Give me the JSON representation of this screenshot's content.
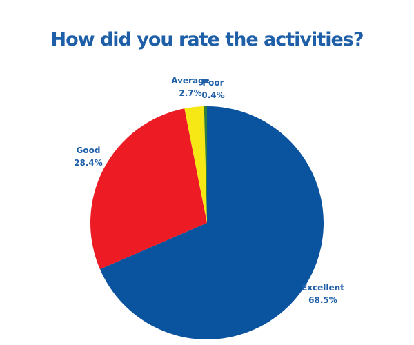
{
  "title": "How did you rate the activities?",
  "colors": {
    "background": "#FFFFFF",
    "title_text": "#1E5FA8",
    "label_text": "#1E5FA8"
  },
  "chart_data": {
    "type": "pie",
    "title": "How did you rate the activities?",
    "start_angle_deg": 0,
    "direction": "clockwise",
    "legend_position": "outside-labels",
    "slices": [
      {
        "label": "Excellent",
        "value_pct": 68.5,
        "display": "68.5%",
        "color": "#0A539E"
      },
      {
        "label": "Good",
        "value_pct": 28.4,
        "display": "28.4%",
        "color": "#ED1C24"
      },
      {
        "label": "Average",
        "value_pct": 2.7,
        "display": "2.7%",
        "color": "#F5E814"
      },
      {
        "label": "Poor",
        "value_pct": 0.4,
        "display": "0.4%",
        "color": "#2E7D3B"
      }
    ]
  }
}
